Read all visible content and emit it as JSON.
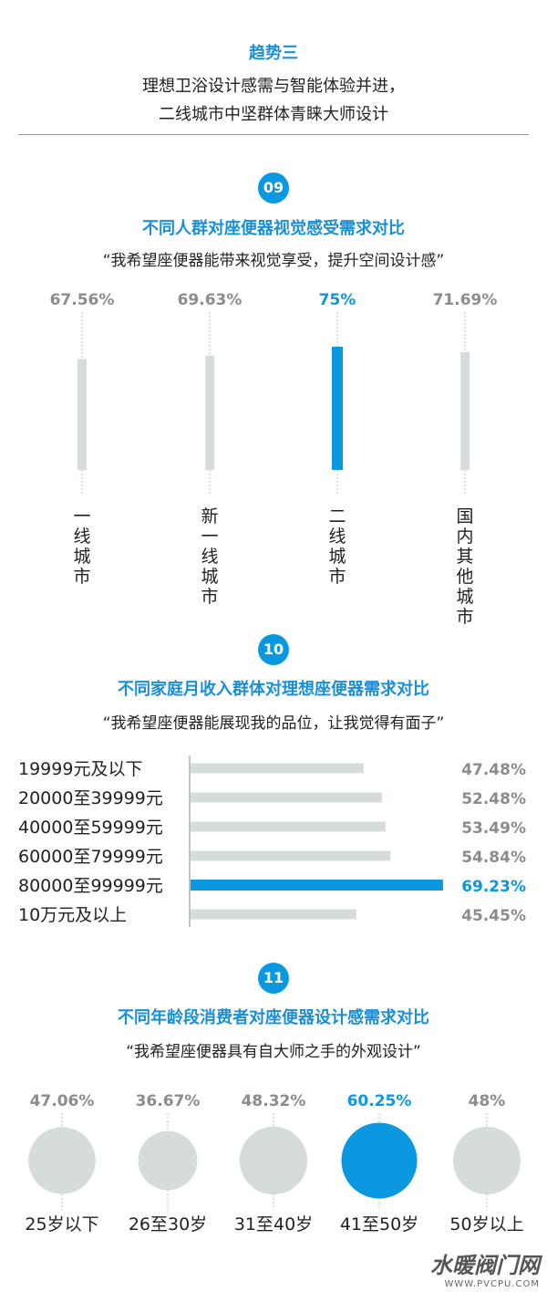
{
  "header": {
    "trend_title": "趋势三",
    "subtitle_line1": "理想卫浴设计感需与智能体验并进，",
    "subtitle_line2": "二线城市中坚群体青睐大师设计"
  },
  "colors": {
    "highlight": "#0a98e0",
    "base": "#d6dcdc",
    "text_title": "#1a8fd6",
    "pct_gray": "#8c8c8c"
  },
  "chart_data": [
    {
      "type": "bar",
      "number": "09",
      "title": "不同人群对座便器视觉感受需求对比",
      "quote": "“我希望座便器能带来视觉享受，提升空间设计感”",
      "categories": [
        "一线城市",
        "新一线城市",
        "二线城市",
        "国内其他城市"
      ],
      "values": [
        67.56,
        69.63,
        75,
        71.69
      ],
      "value_labels": [
        "67.56%",
        "69.63%",
        "75%",
        "71.69%"
      ],
      "highlight_index": 2
    },
    {
      "type": "bar",
      "orientation": "horizontal",
      "number": "10",
      "title": "不同家庭月收入群体对理想座便器需求对比",
      "quote": "“我希望座便器能展现我的品位，让我觉得有面子”",
      "categories": [
        "19999元及以下",
        "20000至39999元",
        "40000至59999元",
        "60000至79999元",
        "80000至99999元",
        "10万元及以上"
      ],
      "values": [
        47.48,
        52.48,
        53.49,
        54.84,
        69.23,
        45.45
      ],
      "value_labels": [
        "47.48%",
        "52.48%",
        "53.49%",
        "54.84%",
        "69.23%",
        "45.45%"
      ],
      "highlight_index": 4
    },
    {
      "type": "bubble",
      "number": "11",
      "title": "不同年龄段消费者对座便器设计感需求对比",
      "quote": "“我希望座便器具有自大师之手的外观设计”",
      "categories": [
        "25岁以下",
        "26至30岁",
        "31至40岁",
        "41至50岁",
        "50岁以上"
      ],
      "values": [
        47.06,
        36.67,
        48.32,
        60.25,
        48
      ],
      "value_labels": [
        "47.06%",
        "36.67%",
        "48.32%",
        "60.25%",
        "48%"
      ],
      "highlight_index": 3
    }
  ],
  "watermark": {
    "logo_text": "水暖阀门网",
    "url": "WWW.PVCPU.COM"
  }
}
